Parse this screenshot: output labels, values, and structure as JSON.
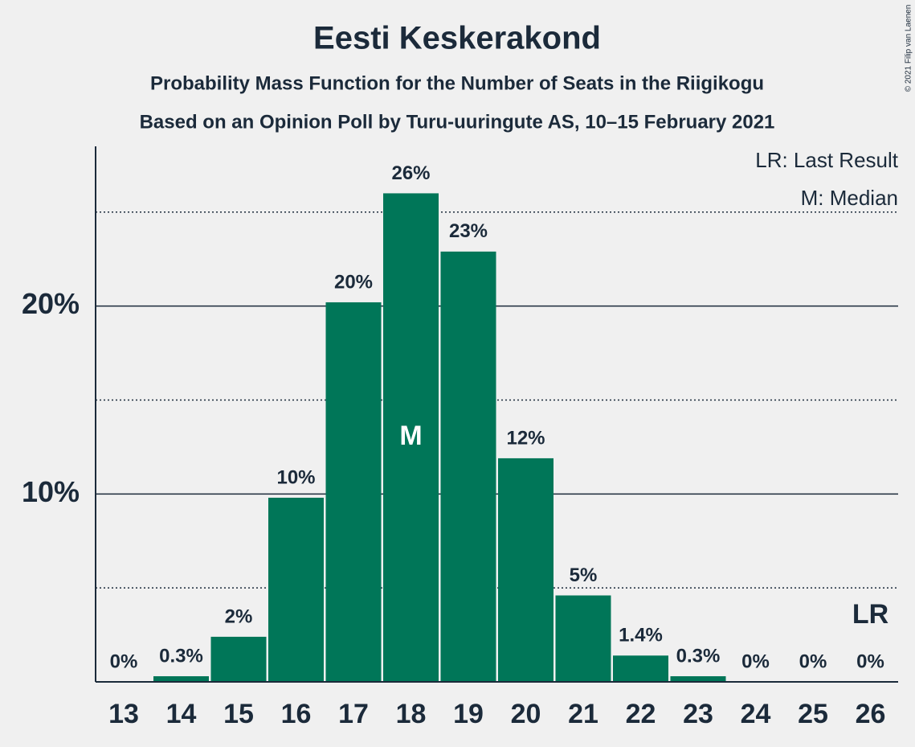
{
  "chart_data": {
    "type": "bar",
    "title": "Eesti Keskerakond",
    "subtitle": "Probability Mass Function for the Number of Seats in the Riigikogu",
    "source": "Based on an Opinion Poll by Turu-uuringute AS, 10–15 February 2021",
    "copyright": "© 2021 Filip van Laenen",
    "categories": [
      "13",
      "14",
      "15",
      "16",
      "17",
      "18",
      "19",
      "20",
      "21",
      "22",
      "23",
      "24",
      "25",
      "26"
    ],
    "values": [
      0,
      0.3,
      2.4,
      9.8,
      20.2,
      26,
      22.9,
      11.9,
      4.6,
      1.4,
      0.3,
      0,
      0,
      0
    ],
    "value_labels": [
      "0%",
      "0.3%",
      "2%",
      "10%",
      "20%",
      "26%",
      "23%",
      "12%",
      "5%",
      "1.4%",
      "0.3%",
      "0%",
      "0%",
      "0%"
    ],
    "color": "#007658",
    "ylim": [
      0,
      28.5
    ],
    "yticks": [
      {
        "value": 10,
        "label": "10%"
      },
      {
        "value": 20,
        "label": "20%"
      }
    ],
    "minor_yticks": [
      5,
      15,
      25
    ],
    "grid": true,
    "annotations": [
      {
        "category": "18",
        "text": "M"
      },
      {
        "category": "26",
        "text": "LR"
      }
    ],
    "legend": [
      "LR: Last Result",
      "M: Median"
    ]
  }
}
